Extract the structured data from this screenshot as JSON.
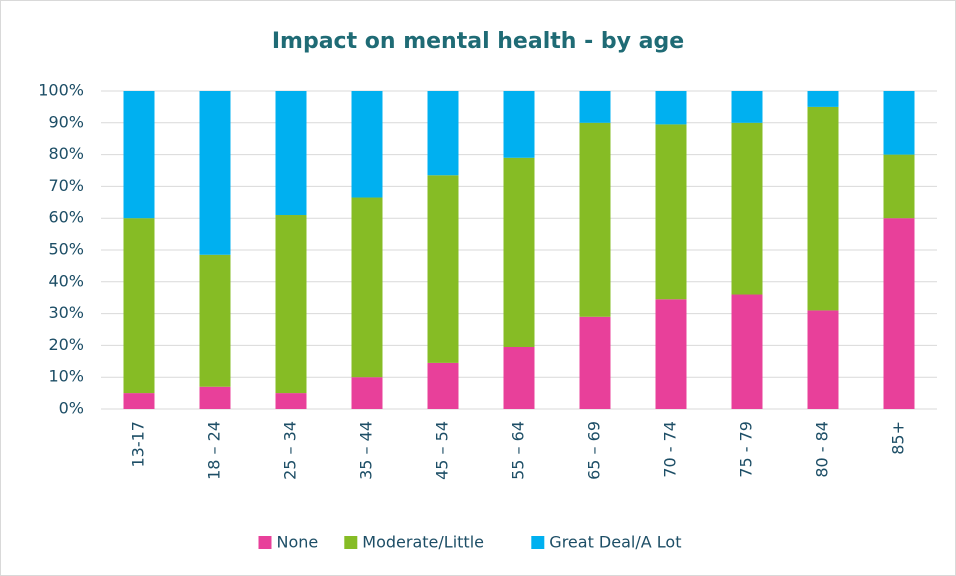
{
  "chart_data": {
    "type": "stacked_bar",
    "title": "Impact on mental health - by age",
    "categories": [
      "13-17",
      "18 – 24",
      "25 – 34",
      "35 – 44",
      "45 – 54",
      "55 – 64",
      "65 – 69",
      "70 - 74",
      "75 - 79",
      "80 - 84",
      "85+"
    ],
    "series": [
      {
        "name": "None",
        "color": "#e8409a",
        "values": [
          5,
          7,
          5,
          10,
          14.5,
          19.5,
          29,
          34.5,
          36,
          31,
          60
        ]
      },
      {
        "name": "Moderate/Little",
        "color": "#86bc25",
        "values": [
          55,
          41.5,
          56,
          56.5,
          59,
          59.5,
          61,
          55,
          54,
          64,
          20
        ]
      },
      {
        "name": "Great Deal/A Lot",
        "color": "#00b0f0",
        "values": [
          40,
          51.5,
          39,
          33.5,
          26.5,
          21,
          10,
          10.5,
          10,
          5,
          20
        ]
      }
    ],
    "ylim": [
      0,
      100
    ],
    "yticks": [
      {
        "value": 0,
        "label": "0%"
      },
      {
        "value": 10,
        "label": "10%"
      },
      {
        "value": 20,
        "label": "20%"
      },
      {
        "value": 30,
        "label": "30%"
      },
      {
        "value": 40,
        "label": "40%"
      },
      {
        "value": 50,
        "label": "50%"
      },
      {
        "value": 60,
        "label": "60%"
      },
      {
        "value": 70,
        "label": "70%"
      },
      {
        "value": 80,
        "label": "80%"
      },
      {
        "value": 90,
        "label": "90%"
      },
      {
        "value": 100,
        "label": "100%"
      }
    ],
    "grid": true,
    "legend": "bottom"
  }
}
